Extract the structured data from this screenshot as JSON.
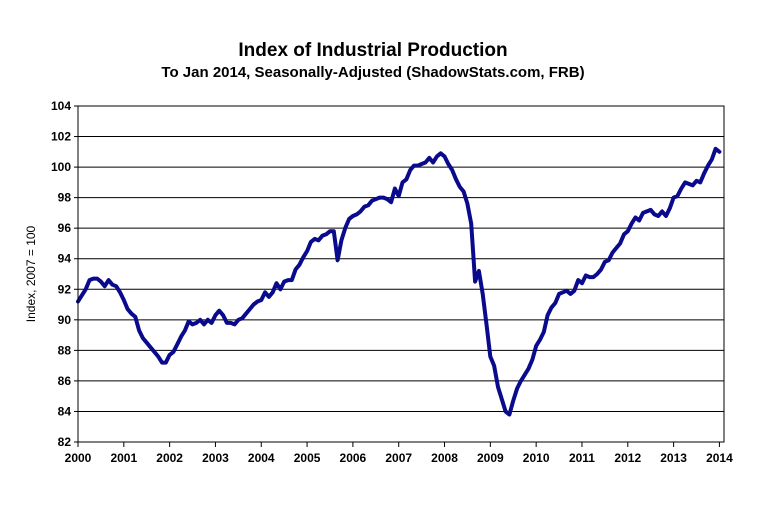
{
  "chart_data": {
    "type": "line",
    "title": "Index of Industrial Production",
    "subtitle": "To Jan 2014, Seasonally-Adjusted (ShadowStats.com, FRB)",
    "xlabel": "",
    "ylabel": "Index, 2007 = 100",
    "xlim": [
      2000,
      2014.1
    ],
    "ylim": [
      82,
      104
    ],
    "x_ticks": [
      2000,
      2001,
      2002,
      2003,
      2004,
      2005,
      2006,
      2007,
      2008,
      2009,
      2010,
      2011,
      2012,
      2013,
      2014
    ],
    "x_tick_labels": [
      "2000",
      "2001",
      "2002",
      "2003",
      "2004",
      "2005",
      "2006",
      "2007",
      "2008",
      "2009",
      "2010",
      "2011",
      "2012",
      "2013",
      "2014"
    ],
    "y_ticks": [
      82,
      84,
      86,
      88,
      90,
      92,
      94,
      96,
      98,
      100,
      102,
      104
    ],
    "y_tick_labels": [
      "82",
      "84",
      "86",
      "88",
      "90",
      "92",
      "94",
      "96",
      "98",
      "100",
      "102",
      "104"
    ],
    "grid": "horizontal",
    "line_color": "#0a0a8c",
    "series": [
      {
        "name": "Index of Industrial Production",
        "x": [
          2000.0,
          2000.083,
          2000.167,
          2000.25,
          2000.333,
          2000.417,
          2000.5,
          2000.583,
          2000.667,
          2000.75,
          2000.833,
          2000.917,
          2001.0,
          2001.083,
          2001.167,
          2001.25,
          2001.333,
          2001.417,
          2001.5,
          2001.583,
          2001.667,
          2001.75,
          2001.833,
          2001.917,
          2002.0,
          2002.083,
          2002.167,
          2002.25,
          2002.333,
          2002.417,
          2002.5,
          2002.583,
          2002.667,
          2002.75,
          2002.833,
          2002.917,
          2003.0,
          2003.083,
          2003.167,
          2003.25,
          2003.333,
          2003.417,
          2003.5,
          2003.583,
          2003.667,
          2003.75,
          2003.833,
          2003.917,
          2004.0,
          2004.083,
          2004.167,
          2004.25,
          2004.333,
          2004.417,
          2004.5,
          2004.583,
          2004.667,
          2004.75,
          2004.833,
          2004.917,
          2005.0,
          2005.083,
          2005.167,
          2005.25,
          2005.333,
          2005.417,
          2005.5,
          2005.583,
          2005.667,
          2005.75,
          2005.833,
          2005.917,
          2006.0,
          2006.083,
          2006.167,
          2006.25,
          2006.333,
          2006.417,
          2006.5,
          2006.583,
          2006.667,
          2006.75,
          2006.833,
          2006.917,
          2007.0,
          2007.083,
          2007.167,
          2007.25,
          2007.333,
          2007.417,
          2007.5,
          2007.583,
          2007.667,
          2007.75,
          2007.833,
          2007.917,
          2008.0,
          2008.083,
          2008.167,
          2008.25,
          2008.333,
          2008.417,
          2008.5,
          2008.583,
          2008.667,
          2008.75,
          2008.833,
          2008.917,
          2009.0,
          2009.083,
          2009.167,
          2009.25,
          2009.333,
          2009.417,
          2009.5,
          2009.583,
          2009.667,
          2009.75,
          2009.833,
          2009.917,
          2010.0,
          2010.083,
          2010.167,
          2010.25,
          2010.333,
          2010.417,
          2010.5,
          2010.583,
          2010.667,
          2010.75,
          2010.833,
          2010.917,
          2011.0,
          2011.083,
          2011.167,
          2011.25,
          2011.333,
          2011.417,
          2011.5,
          2011.583,
          2011.667,
          2011.75,
          2011.833,
          2011.917,
          2012.0,
          2012.083,
          2012.167,
          2012.25,
          2012.333,
          2012.417,
          2012.5,
          2012.583,
          2012.667,
          2012.75,
          2012.833,
          2012.917,
          2013.0,
          2013.083,
          2013.167,
          2013.25,
          2013.333,
          2013.417,
          2013.5,
          2013.583,
          2013.667,
          2013.75,
          2013.833,
          2013.917,
          2014.0
        ],
        "values": [
          91.2,
          91.6,
          92.0,
          92.6,
          92.7,
          92.7,
          92.5,
          92.2,
          92.6,
          92.3,
          92.2,
          91.8,
          91.3,
          90.7,
          90.4,
          90.2,
          89.3,
          88.8,
          88.5,
          88.2,
          87.9,
          87.6,
          87.2,
          87.2,
          87.7,
          87.9,
          88.4,
          88.9,
          89.3,
          89.9,
          89.7,
          89.8,
          90.0,
          89.7,
          90.0,
          89.8,
          90.3,
          90.6,
          90.3,
          89.8,
          89.8,
          89.7,
          90.0,
          90.1,
          90.4,
          90.7,
          91.0,
          91.2,
          91.3,
          91.8,
          91.5,
          91.8,
          92.4,
          92.0,
          92.5,
          92.6,
          92.6,
          93.3,
          93.6,
          94.1,
          94.5,
          95.1,
          95.3,
          95.2,
          95.5,
          95.6,
          95.8,
          95.8,
          93.9,
          95.2,
          96.0,
          96.6,
          96.8,
          96.9,
          97.1,
          97.4,
          97.5,
          97.8,
          97.9,
          98.0,
          98.0,
          97.9,
          97.7,
          98.6,
          98.1,
          99.0,
          99.2,
          99.8,
          100.1,
          100.1,
          100.2,
          100.3,
          100.6,
          100.3,
          100.7,
          100.9,
          100.7,
          100.2,
          99.8,
          99.2,
          98.7,
          98.4,
          97.6,
          96.3,
          92.5,
          93.2,
          91.7,
          89.7,
          87.6,
          87.0,
          85.6,
          84.8,
          84.0,
          83.8,
          84.7,
          85.5,
          86.0,
          86.4,
          86.8,
          87.4,
          88.3,
          88.7,
          89.2,
          90.3,
          90.8,
          91.1,
          91.7,
          91.8,
          91.9,
          91.7,
          91.9,
          92.6,
          92.4,
          92.9,
          92.8,
          92.8,
          93.0,
          93.3,
          93.8,
          93.9,
          94.4,
          94.7,
          95.0,
          95.6,
          95.8,
          96.3,
          96.7,
          96.5,
          97.0,
          97.1,
          97.2,
          96.9,
          96.8,
          97.1,
          96.8,
          97.3,
          98.0,
          98.1,
          98.6,
          99.0,
          98.9,
          98.8,
          99.1,
          99.0,
          99.6,
          100.1,
          100.5,
          101.2,
          101.0
        ]
      }
    ]
  }
}
